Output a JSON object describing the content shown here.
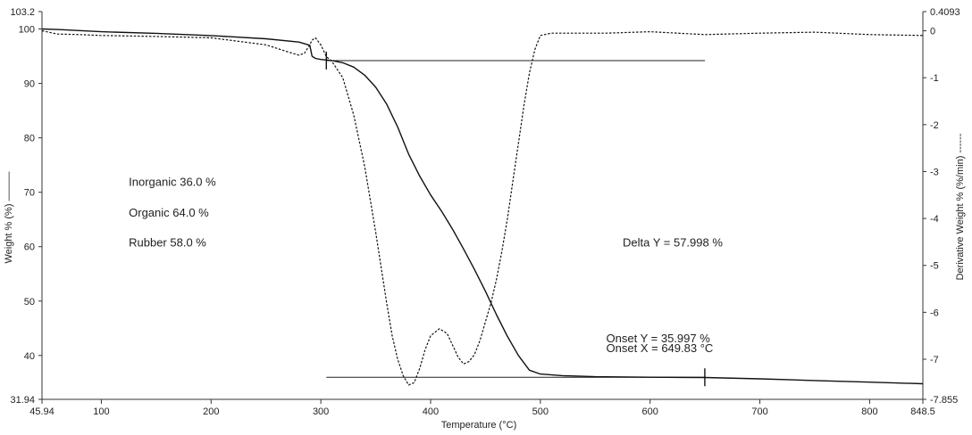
{
  "chart_data": {
    "type": "line",
    "xlabel": "Temperature (°C)",
    "ylabel_left": "Weight % (%) ———",
    "ylabel_right": "Derivative Weight % (%/min) ------",
    "xlim": [
      45.94,
      848.5
    ],
    "ylim_left": [
      31.94,
      103.2
    ],
    "ylim_right": [
      -7.855,
      0.4093
    ],
    "x_tick_labels": [
      "45.94",
      "100",
      "200",
      "300",
      "400",
      "500",
      "600",
      "700",
      "800",
      "848.5"
    ],
    "y_left_tick_labels": [
      "103.2",
      "100",
      "90",
      "80",
      "70",
      "60",
      "50",
      "40",
      "31.94"
    ],
    "y_right_tick_labels": [
      "0.4093",
      "0",
      "-1",
      "-2",
      "-3",
      "-4",
      "-5",
      "-6",
      "-7",
      "-7.855"
    ],
    "annotations": [
      {
        "text": "Inorganic 36.0 %",
        "x": 125,
        "y": 71.2,
        "axis": "left"
      },
      {
        "text": "Organic 64.0 %",
        "x": 125,
        "y": 65.5,
        "axis": "left"
      },
      {
        "text": "Rubber 58.0 %",
        "x": 125,
        "y": 60.0,
        "axis": "left"
      },
      {
        "text": "Delta Y = 57.998 %",
        "x": 575,
        "y": 60.0,
        "axis": "left"
      },
      {
        "text": "Onset Y = 35.997 %",
        "x": 560,
        "y": 42.4,
        "axis": "left"
      },
      {
        "text": "Onset X = 649.83 °C",
        "x": 560,
        "y": 40.6,
        "axis": "left"
      }
    ],
    "series": [
      {
        "axis": "left",
        "style": "solid",
        "x": [
          45.94,
          60,
          100,
          150,
          200,
          250,
          280,
          290,
          292,
          295,
          300,
          310,
          320,
          330,
          340,
          350,
          360,
          370,
          380,
          390,
          400,
          410,
          420,
          430,
          440,
          450,
          460,
          470,
          480,
          490,
          500,
          520,
          550,
          600,
          650,
          700,
          750,
          800,
          848.5
        ],
        "y": [
          100.0,
          99.9,
          99.5,
          99.2,
          98.8,
          98.2,
          97.6,
          97.0,
          95.0,
          94.6,
          94.4,
          94.2,
          93.8,
          93.0,
          91.5,
          89.3,
          86.2,
          82.0,
          77.0,
          73.0,
          69.5,
          66.5,
          63.2,
          59.6,
          55.8,
          51.8,
          47.5,
          43.5,
          40.0,
          37.3,
          36.6,
          36.3,
          36.1,
          36.0,
          35.95,
          35.7,
          35.4,
          35.1,
          34.8
        ]
      },
      {
        "axis": "right",
        "style": "dashed",
        "x": [
          45.94,
          50,
          60,
          80,
          100,
          150,
          200,
          250,
          270,
          280,
          285,
          290,
          292,
          295,
          300,
          305,
          310,
          320,
          330,
          340,
          350,
          360,
          365,
          370,
          375,
          380,
          385,
          390,
          395,
          400,
          408,
          415,
          420,
          425,
          430,
          435,
          440,
          445,
          450,
          455,
          460,
          465,
          470,
          475,
          480,
          485,
          490,
          495,
          500,
          510,
          530,
          560,
          600,
          650,
          700,
          750,
          800,
          848.5
        ],
        "y": [
          0.0,
          -0.02,
          -0.07,
          -0.08,
          -0.1,
          -0.12,
          -0.15,
          -0.3,
          -0.45,
          -0.52,
          -0.48,
          -0.3,
          -0.2,
          -0.15,
          -0.3,
          -0.55,
          -0.65,
          -1.0,
          -1.8,
          -2.9,
          -4.3,
          -5.8,
          -6.5,
          -7.0,
          -7.35,
          -7.55,
          -7.5,
          -7.2,
          -6.8,
          -6.5,
          -6.35,
          -6.45,
          -6.7,
          -6.95,
          -7.1,
          -7.05,
          -6.9,
          -6.6,
          -6.2,
          -5.8,
          -5.3,
          -4.7,
          -4.0,
          -3.2,
          -2.4,
          -1.6,
          -0.9,
          -0.4,
          -0.1,
          -0.05,
          -0.05,
          -0.05,
          -0.02,
          -0.08,
          -0.05,
          -0.03,
          -0.08,
          -0.1
        ]
      }
    ],
    "reference_lines": [
      {
        "x1": 305,
        "x2": 650,
        "y": 94.2,
        "axis": "left"
      },
      {
        "x1": 305,
        "x2": 650,
        "y": 35.997,
        "axis": "left"
      }
    ],
    "markers": [
      {
        "x": 305,
        "y": 94.2,
        "axis": "left"
      },
      {
        "x": 649.83,
        "y": 35.997,
        "axis": "left"
      }
    ]
  }
}
